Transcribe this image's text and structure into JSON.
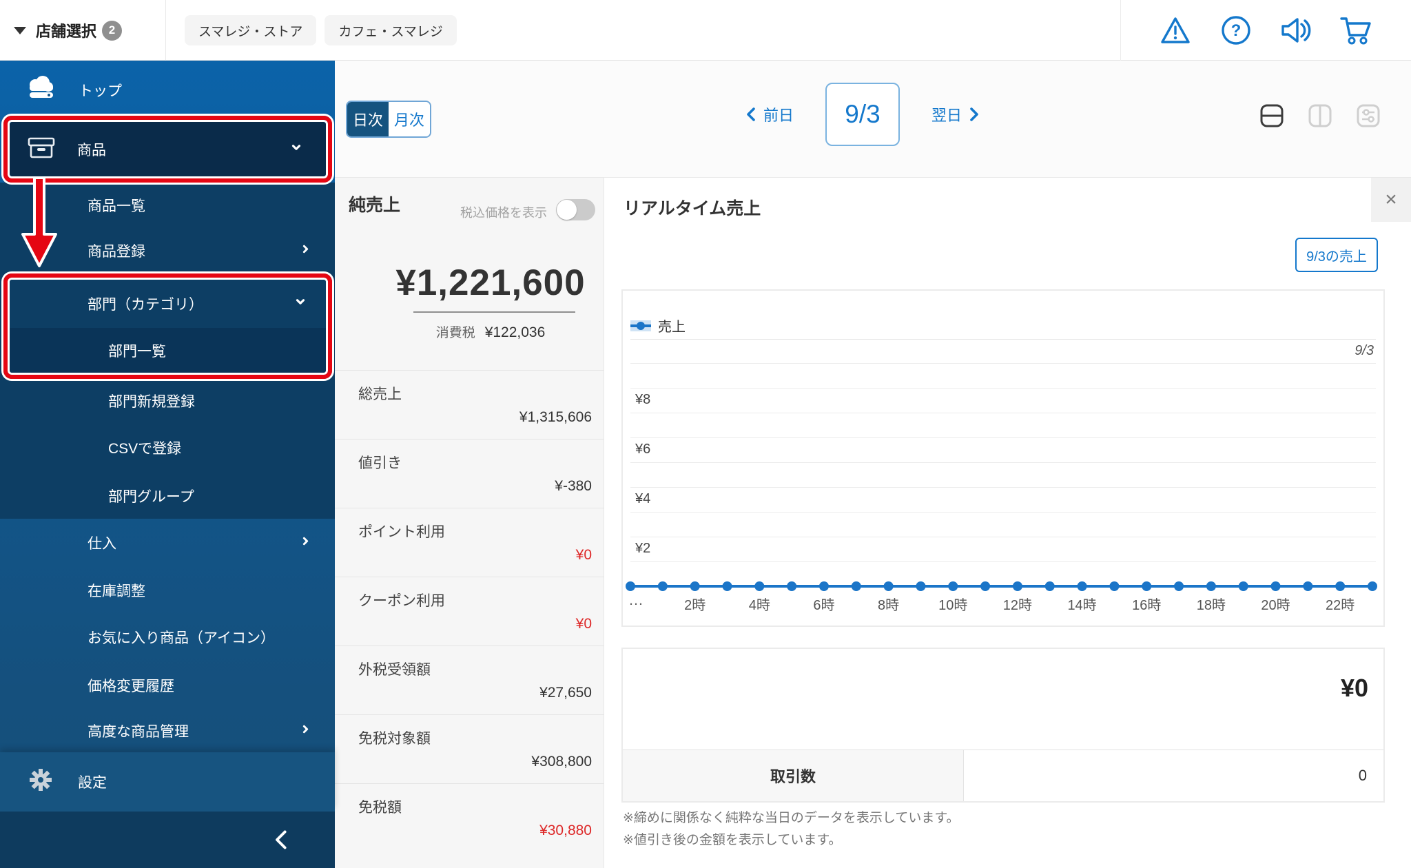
{
  "topbar": {
    "store_selector": {
      "label": "店舗選択",
      "badge": "2"
    },
    "store_tabs": [
      {
        "label": "スマレジ・ストア"
      },
      {
        "label": "カフェ・スマレジ"
      }
    ],
    "action_icons": [
      "alert-icon",
      "help-icon",
      "announcement-icon",
      "cart-icon"
    ],
    "accent_color": "#1478cc"
  },
  "sidebar": {
    "items": [
      {
        "label": "トップ"
      },
      {
        "label": "商品"
      },
      {
        "label": "商品一覧"
      },
      {
        "label": "商品登録"
      },
      {
        "label": "部門（カテゴリ）"
      },
      {
        "label": "部門一覧"
      },
      {
        "label": "部門新規登録"
      },
      {
        "label": "CSVで登録"
      },
      {
        "label": "部門グループ"
      },
      {
        "label": "仕入"
      },
      {
        "label": "在庫調整"
      },
      {
        "label": "お気に入り商品（アイコン）"
      },
      {
        "label": "価格変更履歴"
      },
      {
        "label": "高度な商品管理"
      },
      {
        "label": "設定"
      }
    ],
    "selected_item": "部門一覧",
    "annotation_color": "#e50613"
  },
  "header": {
    "period_toggle": {
      "daily": "日次",
      "monthly": "月次",
      "selected": "日次"
    },
    "date_nav": {
      "prev": "前日",
      "date": "9/3",
      "next": "翌日"
    }
  },
  "stats": {
    "title": "純売上",
    "tax_toggle_label": "税込価格を表示",
    "tax_toggle_state": "off",
    "net_sales": "¥1,221,600",
    "tax_label": "消費税",
    "tax_value": "¥122,036",
    "rows": [
      {
        "label": "総売上",
        "value": "¥1,315,606",
        "emphasis": "normal"
      },
      {
        "label": "値引き",
        "value": "¥-380",
        "emphasis": "normal"
      },
      {
        "label": "ポイント利用",
        "value": "¥0",
        "emphasis": "red"
      },
      {
        "label": "クーポン利用",
        "value": "¥0",
        "emphasis": "red"
      },
      {
        "label": "外税受領額",
        "value": "¥27,650",
        "emphasis": "normal"
      },
      {
        "label": "免税対象額",
        "value": "¥308,800",
        "emphasis": "normal"
      },
      {
        "label": "免税額",
        "value": "¥30,880",
        "emphasis": "red"
      }
    ],
    "negative_color": "#dd2727"
  },
  "realtime": {
    "title": "リアルタイム売上",
    "close_label": "×",
    "sales_button": "9/3の売上",
    "summary": {
      "amount": "¥0",
      "row_label": "取引数",
      "count": "0"
    },
    "notes": [
      "※締めに関係なく純粋な当日のデータを表示しています。",
      "※値引き後の金額を表示しています。"
    ]
  },
  "chart_data": {
    "type": "line",
    "title": "リアルタイム売上",
    "legend_position": "top-left",
    "date_label": "9/3",
    "x": [
      0,
      1,
      2,
      3,
      4,
      5,
      6,
      7,
      8,
      9,
      10,
      11,
      12,
      13,
      14,
      15,
      16,
      17,
      18,
      19,
      20,
      21,
      22,
      23
    ],
    "x_tick_labels": [
      "2時",
      "4時",
      "6時",
      "8時",
      "10時",
      "12時",
      "14時",
      "16時",
      "18時",
      "20時",
      "22時"
    ],
    "left_ellipsis": "…",
    "series": [
      {
        "name": "売上",
        "values": [
          0,
          0,
          0,
          0,
          0,
          0,
          0,
          0,
          0,
          0,
          0,
          0,
          0,
          0,
          0,
          0,
          0,
          0,
          0,
          0,
          0,
          0,
          0,
          0
        ]
      }
    ],
    "ylabels": [
      {
        "text": "¥8",
        "value": 8
      },
      {
        "text": "¥6",
        "value": 6
      },
      {
        "text": "¥4",
        "value": 4
      },
      {
        "text": "¥2",
        "value": 2
      }
    ],
    "ylim": [
      0,
      9
    ],
    "grid": "horizontal",
    "line_color": "#1b75c8"
  }
}
